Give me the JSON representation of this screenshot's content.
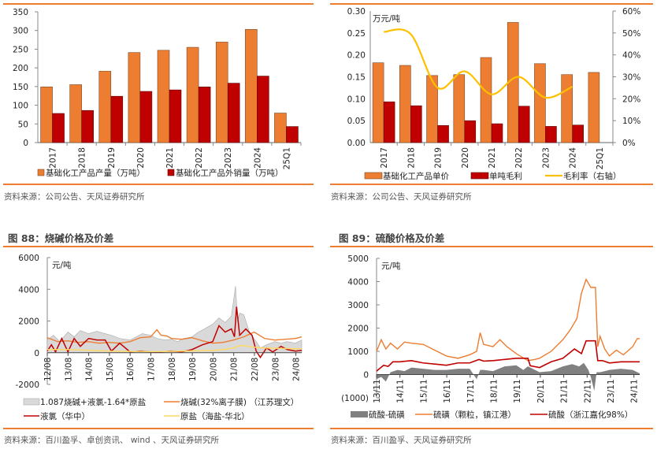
{
  "panels": [
    {
      "source": "资料来源：公司公告、天风证券研究所"
    },
    {
      "source": "资料来源：公司公告、天风证券研究所"
    },
    {
      "title": "图 88：烧碱价格及价差",
      "source": "资料来源：百川盈孚、卓创资讯、 wind 、天风证券研究所"
    },
    {
      "title": "图 89：硫酸价格及价差",
      "source": "资料来源：百川盈孚、天风证券研究所"
    }
  ],
  "colors": {
    "orange": "#ed7d31",
    "darkred": "#c00000",
    "gold": "#ffc000",
    "gray_area": "#d9d9d9",
    "dark_gray": "#808080",
    "red_line": "#c00000",
    "light_yellow": "#ffd966",
    "rule": "#ed7d31"
  },
  "chart_data": [
    {
      "type": "bar",
      "title": "",
      "categories": [
        "2017",
        "2018",
        "2019",
        "2020",
        "2021",
        "2022",
        "2023",
        "2024",
        "25Q1"
      ],
      "series": [
        {
          "name": "基础化工产品产量（万吨）",
          "values": [
            149,
            155,
            191,
            241,
            247,
            255,
            269,
            303,
            79
          ]
        },
        {
          "name": "基础化工产品外销量（万吨）",
          "values": [
            78,
            86,
            124,
            137,
            141,
            149,
            159,
            178,
            43
          ]
        }
      ],
      "yticks": [
        "0",
        "50",
        "100",
        "150",
        "200",
        "250",
        "300",
        "350"
      ],
      "ylim": [
        0,
        350
      ],
      "xlabel": "",
      "ylabel": "",
      "legend": "bottom"
    },
    {
      "type": "bar",
      "title": "",
      "unit_label": "万元/吨",
      "categories": [
        "2017",
        "2018",
        "2019",
        "2020",
        "2021",
        "2022",
        "2023",
        "2024",
        "25Q1"
      ],
      "series": [
        {
          "name": "基础化工产品单价",
          "values": [
            0.182,
            0.176,
            0.153,
            0.155,
            0.194,
            0.274,
            0.18,
            0.155,
            0.16
          ],
          "axis": "left"
        },
        {
          "name": "单吨毛利",
          "values": [
            0.093,
            0.084,
            0.039,
            0.05,
            0.043,
            0.083,
            0.037,
            0.04,
            null
          ],
          "axis": "left"
        },
        {
          "name": "毛利率（右轴）",
          "type": "line",
          "values": [
            0.505,
            0.495,
            0.25,
            0.325,
            0.22,
            0.3,
            0.205,
            0.255,
            null
          ],
          "axis": "right"
        }
      ],
      "yticks": [
        "0.00",
        "0.05",
        "0.10",
        "0.15",
        "0.20",
        "0.25",
        "0.30"
      ],
      "ylim": [
        0,
        0.3
      ],
      "y2ticks": [
        "0%",
        "10%",
        "20%",
        "30%",
        "40%",
        "50%",
        "60%"
      ],
      "y2lim": [
        0,
        0.6
      ],
      "legend": "bottom"
    },
    {
      "type": "area",
      "title": "图 88：烧碱价格及价差",
      "unit_label": "元/吨",
      "xticks": [
        "12/08",
        "13/08",
        "14/08",
        "15/08",
        "16/08",
        "17/08",
        "18/08",
        "19/08",
        "20/08",
        "21/08",
        "22/08",
        "23/08",
        "24/08"
      ],
      "yticks": [
        "-2000",
        "0",
        "2000",
        "4000",
        "6000"
      ],
      "ylim": [
        -2000,
        6000
      ],
      "x_range": [
        "2012-08",
        "2024-12"
      ],
      "series": [
        {
          "name": "1.087烧碱+液氯-1.64*原盐",
          "type": "area",
          "x": [
            0,
            0.3,
            0.6,
            1,
            1.3,
            1.6,
            2,
            2.4,
            2.8,
            3.1,
            3.5,
            4,
            4.3,
            4.6,
            5,
            5.3,
            5.7,
            6,
            6.3,
            6.6,
            7,
            7.3,
            7.6,
            8,
            8.3,
            8.6,
            8.9,
            9.1,
            9.2,
            9.3,
            9.5,
            9.8,
            10,
            10.3,
            10.6,
            11,
            11.3,
            11.6,
            12,
            12.3
          ],
          "y": [
            800,
            1100,
            700,
            1300,
            1000,
            1400,
            1200,
            1350,
            1200,
            1100,
            900,
            800,
            1000,
            1200,
            1100,
            900,
            800,
            850,
            700,
            900,
            1000,
            1300,
            1500,
            1800,
            2200,
            1900,
            2300,
            4200,
            2000,
            2500,
            2400,
            1200,
            900,
            300,
            500,
            700,
            600,
            700,
            600,
            800
          ]
        },
        {
          "name": "烧碱(32%离子膜) （江苏理文）",
          "type": "line",
          "x": [
            0,
            0.5,
            1,
            1.5,
            2,
            2.5,
            3,
            3.5,
            4,
            4.5,
            5,
            5.3,
            5.5,
            5.8,
            6,
            6.5,
            7,
            7.5,
            8,
            8.5,
            9,
            9.5,
            10,
            10.5,
            11,
            11.5,
            12,
            12.3
          ],
          "y": [
            950,
            700,
            750,
            650,
            700,
            600,
            650,
            600,
            700,
            950,
            1000,
            1450,
            1100,
            1050,
            900,
            850,
            950,
            750,
            600,
            650,
            800,
            1000,
            1300,
            900,
            800,
            850,
            900,
            1000
          ]
        },
        {
          "name": "液氯（华中）",
          "type": "line",
          "x": [
            0,
            0.2,
            0.4,
            0.7,
            1,
            1.3,
            1.6,
            2,
            2.4,
            2.8,
            3.1,
            3.5,
            4,
            4.5,
            5,
            5.5,
            6,
            6.5,
            7,
            7.5,
            8,
            8.3,
            8.6,
            8.9,
            9.05,
            9.15,
            9.3,
            9.6,
            9.9,
            10.1,
            10.3,
            10.6,
            10.9,
            11.3,
            11.6,
            12,
            12.3
          ],
          "y": [
            100,
            500,
            50,
            900,
            50,
            900,
            400,
            900,
            800,
            800,
            100,
            600,
            50,
            100,
            50,
            50,
            100,
            50,
            200,
            500,
            700,
            1700,
            1300,
            1500,
            1000,
            2900,
            1100,
            1500,
            1100,
            100,
            -300,
            300,
            50,
            400,
            200,
            100,
            150
          ]
        },
        {
          "name": "原盐（海盐-华北）",
          "type": "line",
          "x": [
            0,
            1,
            2,
            3,
            4,
            5,
            6,
            7,
            8,
            8.5,
            9,
            9.3,
            9.6,
            10,
            10.5,
            11,
            12,
            12.3
          ],
          "y": [
            200,
            200,
            150,
            100,
            80,
            60,
            80,
            120,
            150,
            200,
            300,
            450,
            420,
            350,
            300,
            280,
            250,
            250
          ]
        }
      ],
      "legend": "bottom"
    },
    {
      "type": "area",
      "title": "图 89：硫酸价格及价差",
      "unit_label": "元/吨",
      "xticks": [
        "13/11",
        "14/11",
        "15/11",
        "16/11",
        "17/11",
        "18/11",
        "19/11",
        "20/11",
        "21/11",
        "22/11",
        "23/11",
        "24/11"
      ],
      "yticks": [
        "(1000)",
        "0",
        "1000",
        "2000",
        "3000",
        "4000",
        "5000"
      ],
      "ylim": [
        -1000,
        5000
      ],
      "x_range": [
        "2013-11",
        "2024-12"
      ],
      "series": [
        {
          "name": "硫酸-硫磺",
          "type": "area",
          "x": [
            0,
            0.2,
            0.4,
            0.6,
            0.9,
            1.2,
            1.5,
            2,
            2.5,
            3,
            3.5,
            4,
            4.3,
            4.45,
            4.6,
            5,
            5.5,
            6,
            6.3,
            6.5,
            7,
            7.5,
            8,
            8.4,
            8.7,
            8.9,
            9.1,
            9.2,
            9.35,
            9.45,
            9.6,
            9.8,
            10,
            10.5,
            11,
            11.3
          ],
          "y": [
            -200,
            -100,
            -300,
            100,
            200,
            150,
            300,
            250,
            200,
            200,
            250,
            250,
            -200,
            200,
            200,
            150,
            350,
            400,
            200,
            350,
            100,
            150,
            350,
            450,
            350,
            500,
            200,
            -100,
            -700,
            100,
            100,
            150,
            200,
            250,
            200,
            50
          ]
        },
        {
          "name": "硫磺（颗粒，镇江港）",
          "type": "line",
          "x": [
            0,
            0.2,
            0.4,
            0.6,
            0.9,
            1.2,
            1.5,
            2,
            2.5,
            3,
            3.5,
            4,
            4.3,
            4.45,
            4.6,
            5,
            5.3,
            5.6,
            6,
            6.5,
            6.8,
            7,
            7.5,
            8,
            8.3,
            8.6,
            8.8,
            9,
            9.2,
            9.4,
            9.5,
            9.6,
            9.8,
            10,
            10.3,
            10.6,
            11,
            11.2,
            11.3
          ],
          "y": [
            1000,
            1500,
            1100,
            1350,
            1100,
            1400,
            1350,
            1300,
            1050,
            800,
            700,
            850,
            1000,
            1800,
            1300,
            1200,
            1500,
            1200,
            900,
            600,
            650,
            700,
            1000,
            1500,
            1900,
            2400,
            3500,
            4100,
            3750,
            3750,
            1200,
            1650,
            1100,
            800,
            1050,
            850,
            1200,
            1550,
            1550
          ]
        },
        {
          "name": "硫酸（浙江嘉化98%）",
          "type": "line",
          "x": [
            0,
            0.3,
            0.5,
            0.7,
            1,
            1.5,
            2,
            2.5,
            3,
            3.5,
            4,
            4.4,
            4.6,
            5,
            5.5,
            6,
            6.5,
            6.6,
            7,
            7.5,
            8,
            8.5,
            8.8,
            9,
            9.2,
            9.4,
            9.5,
            9.7,
            10,
            10.5,
            11,
            11.3
          ],
          "y": [
            150,
            400,
            350,
            550,
            550,
            600,
            500,
            450,
            400,
            500,
            500,
            650,
            580,
            600,
            650,
            700,
            700,
            380,
            300,
            550,
            700,
            1100,
            900,
            1450,
            1450,
            1450,
            600,
            600,
            500,
            550,
            550,
            550
          ]
        }
      ],
      "legend": "bottom"
    }
  ]
}
